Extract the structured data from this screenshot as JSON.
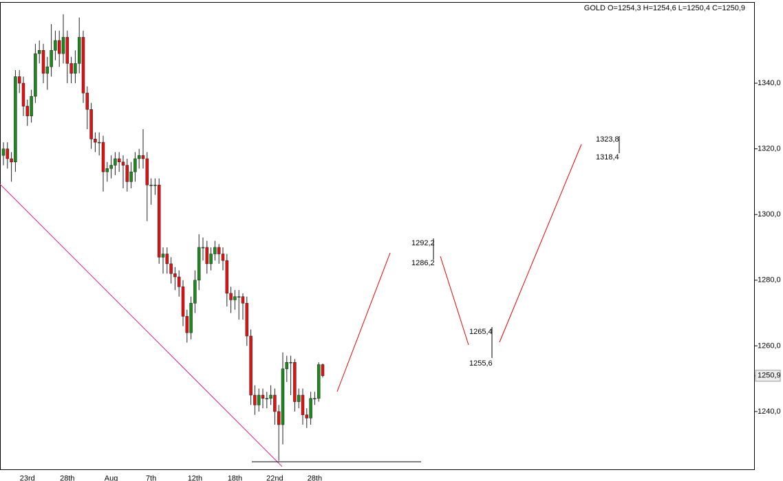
{
  "chart_data": {
    "type": "candlestick",
    "title": "GOLD O=1254,3 H=1254,6 L=1250,4 C=1250,9",
    "categories": [
      null,
      null,
      null,
      null,
      null,
      null,
      "23rd",
      null,
      null,
      null,
      null,
      null,
      null,
      null,
      null,
      null,
      "28th",
      null,
      null,
      null,
      null,
      null,
      null,
      null,
      null,
      null,
      null,
      "Aug",
      null,
      null,
      null,
      null,
      null,
      null,
      null,
      null,
      null,
      "7th",
      null,
      null,
      null,
      null,
      null,
      null,
      null,
      null,
      null,
      null,
      "12th",
      null,
      null,
      null,
      null,
      null,
      null,
      null,
      null,
      null,
      "18th",
      null,
      null,
      null,
      null,
      null,
      null,
      null,
      null,
      null,
      "22nd",
      null,
      null,
      null,
      null,
      null,
      null,
      null,
      null,
      null,
      "28th",
      null,
      null
    ],
    "open": [
      1318,
      1320,
      1317,
      1316,
      1342,
      1340,
      1333,
      1330,
      1336,
      1349,
      1350,
      1343,
      1345,
      1350,
      1353,
      1349,
      1354,
      1346,
      1343,
      1346,
      1354,
      1337,
      1332,
      1323,
      1322,
      1322,
      1313,
      1314,
      1315,
      1317,
      1316,
      1315,
      1310,
      1313,
      1317,
      1318,
      1317,
      1309,
      1309,
      1309,
      1287,
      1288,
      1285,
      1282,
      1281,
      1278,
      1269,
      1264,
      1273,
      1280,
      1290,
      1290,
      1285,
      1288,
      1290,
      1288,
      1286,
      1276,
      1274,
      1275,
      1275,
      1273,
      1263,
      1245,
      1242,
      1245,
      1244,
      1244,
      1245,
      1240,
      1236,
      1253,
      1255,
      1255,
      1243,
      1245,
      1239,
      1238,
      1244,
      1244,
      1254.3
    ],
    "high": [
      1322,
      1322,
      1319,
      1344,
      1344,
      1342,
      1335,
      1338,
      1352,
      1353,
      1352,
      1348,
      1358,
      1356,
      1356,
      1361,
      1356,
      1348,
      1350,
      1360,
      1356,
      1339,
      1334,
      1325,
      1325,
      1324,
      1316,
      1318,
      1319,
      1319,
      1318,
      1317,
      1316,
      1319,
      1320,
      1326,
      1319,
      1311,
      1311,
      1311,
      1290,
      1290,
      1287,
      1284,
      1283,
      1280,
      1271,
      1275,
      1283,
      1294,
      1293,
      1292,
      1290,
      1292,
      1291,
      1290,
      1288,
      1278,
      1277,
      1277,
      1276,
      1275,
      1265,
      1248,
      1247,
      1247,
      1246,
      1248,
      1247,
      1242,
      1258,
      1257,
      1257,
      1256,
      1247,
      1247,
      1241,
      1246,
      1246,
      1255,
      1254.6
    ],
    "low": [
      1315,
      1314,
      1310,
      1313,
      1337,
      1330,
      1327,
      1328,
      1334,
      1346,
      1340,
      1338,
      1342,
      1347,
      1345,
      1346,
      1340,
      1340,
      1340,
      1343,
      1334,
      1326,
      1320,
      1319,
      1318,
      1307,
      1310,
      1311,
      1312,
      1313,
      1308,
      1307,
      1308,
      1310,
      1314,
      1314,
      1298,
      1303,
      1306,
      1285,
      1282,
      1282,
      1279,
      1277,
      1275,
      1266,
      1261,
      1262,
      1270,
      1277,
      1286,
      1282,
      1283,
      1286,
      1285,
      1283,
      1272,
      1270,
      1271,
      1268,
      1268,
      1260,
      1242,
      1239,
      1240,
      1241,
      1241,
      1242,
      1236,
      1225,
      1230,
      1249,
      1245,
      1240,
      1241,
      1236,
      1235,
      1236,
      1242,
      1243,
      1250.4
    ],
    "close": [
      1320,
      1317,
      1316,
      1342,
      1340,
      1333,
      1330,
      1336,
      1349,
      1350,
      1343,
      1345,
      1350,
      1353,
      1349,
      1354,
      1346,
      1343,
      1346,
      1354,
      1337,
      1332,
      1323,
      1322,
      1322,
      1313,
      1314,
      1315,
      1317,
      1316,
      1315,
      1310,
      1313,
      1317,
      1318,
      1317,
      1309,
      1309,
      1309,
      1287,
      1288,
      1285,
      1282,
      1281,
      1278,
      1269,
      1264,
      1273,
      1280,
      1290,
      1290,
      1285,
      1288,
      1290,
      1288,
      1286,
      1276,
      1274,
      1275,
      1275,
      1273,
      1263,
      1245,
      1242,
      1245,
      1244,
      1244,
      1245,
      1240,
      1236,
      1253,
      1255,
      1255,
      1243,
      1245,
      1239,
      1238,
      1244,
      1244,
      1254.3,
      1250.9
    ],
    "up_color": "#1b8a1b",
    "down_color": "#e41010",
    "ylim": [
      1222.3,
      1364.6
    ],
    "yticks": [
      {
        "value": 1240,
        "label": "1240,0"
      },
      {
        "value": 1260,
        "label": "1260,0"
      },
      {
        "value": 1280,
        "label": "1280,0"
      },
      {
        "value": 1300,
        "label": "1300,0"
      },
      {
        "value": 1320,
        "label": "1320,0"
      },
      {
        "value": 1340,
        "label": "1340,0"
      }
    ],
    "last_price": {
      "value": 1250.9,
      "label": "1250,9"
    },
    "annotations": [
      {
        "value": 1292.2,
        "label": "1292,2"
      },
      {
        "value": 1286.2,
        "label": "1286,2"
      },
      {
        "value": 1265.4,
        "label": "1265,4"
      },
      {
        "value": 1255.6,
        "label": "1255,6"
      },
      {
        "value": 1323.8,
        "label": "1323,8"
      },
      {
        "value": 1318.4,
        "label": "1318,4"
      }
    ]
  }
}
